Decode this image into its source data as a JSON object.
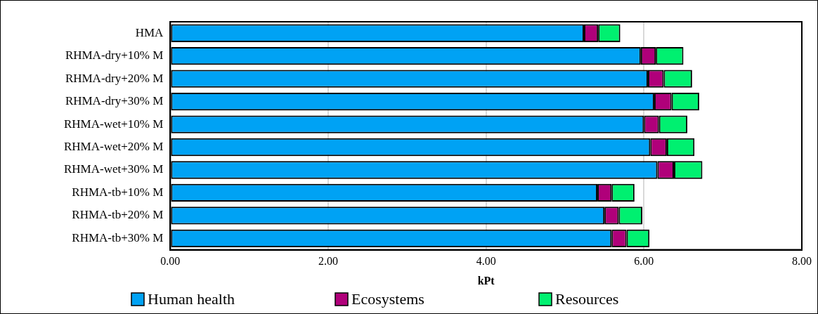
{
  "chart_data": {
    "type": "bar",
    "orientation": "horizontal",
    "stacked": true,
    "categories": [
      "HMA",
      "RHMA-dry+10% M",
      "RHMA-dry+20% M",
      "RHMA-dry+30% M",
      "RHMA-wet+10% M",
      "RHMA-wet+20% M",
      "RHMA-wet+30% M",
      "RHMA-tb+10% M",
      "RHMA-tb+20% M",
      "RHMA-tb+30% M"
    ],
    "series": [
      {
        "name": "Human health",
        "color": "#00a2f4",
        "values": [
          5.24,
          5.96,
          6.05,
          6.13,
          6.0,
          6.08,
          6.17,
          5.41,
          5.5,
          5.59
        ]
      },
      {
        "name": "Ecosystems",
        "color": "#b0007a",
        "values": [
          0.18,
          0.19,
          0.2,
          0.22,
          0.19,
          0.21,
          0.21,
          0.18,
          0.18,
          0.19
        ]
      },
      {
        "name": "Resources",
        "color": "#00f070",
        "values": [
          0.28,
          0.35,
          0.36,
          0.35,
          0.36,
          0.35,
          0.36,
          0.29,
          0.3,
          0.29
        ]
      }
    ],
    "xlabel": "kPt",
    "xlim": [
      0,
      8
    ],
    "xticks": [
      {
        "value": 0,
        "label": "0.00"
      },
      {
        "value": 2,
        "label": "2.00"
      },
      {
        "value": 4,
        "label": "4.00"
      },
      {
        "value": 6,
        "label": "6.00"
      },
      {
        "value": 8,
        "label": "8.00"
      }
    ],
    "grid": "x",
    "legend": "bottom"
  }
}
